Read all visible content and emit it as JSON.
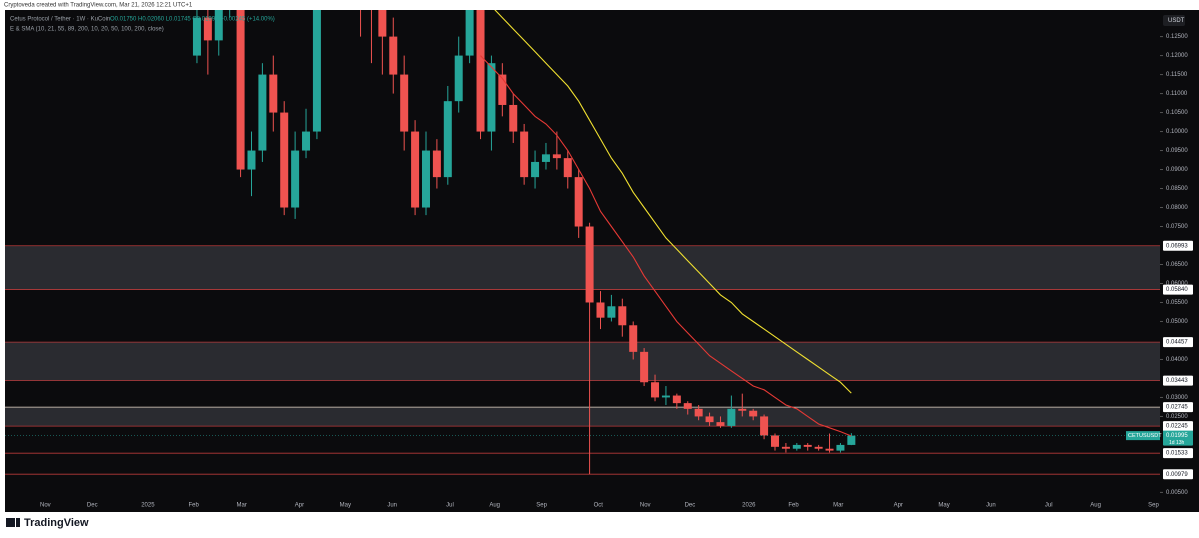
{
  "chart_data": {
    "type": "candlestick",
    "credit": "Cryptoveda created with TradingView.com, Mar 21, 2026 12:21 UTC+1",
    "title": "Cetus Protocol / Tether · 1W · KuCoin",
    "ohlc_legend": "O0.01750 H0.02060 L0.01745 C0.01995 +0.00245 (+14.00%)",
    "indicator_legend": "E & SMA (10, 21, 55, 89, 200, 10, 20, 50, 100, 200, close)",
    "currency": "USDT",
    "symbol": "CETUSUSDT",
    "countdown": "1d 13h",
    "brand": "TradingView",
    "up_color": "#26a69a",
    "down_color": "#ef5350",
    "open": [
      0.12,
      0.13,
      0.124,
      0.135,
      0.14,
      0.09,
      0.095,
      0.115,
      0.105,
      0.08,
      0.095,
      0.1,
      0.14,
      0.15,
      0.145,
      0.155,
      0.148,
      0.14,
      0.125,
      0.115,
      0.1,
      0.08,
      0.095,
      0.088,
      0.108,
      0.12,
      0.14,
      0.1,
      0.115,
      0.107,
      0.1,
      0.088,
      0.092,
      0.094,
      0.093,
      0.088,
      0.075,
      0.055,
      0.051,
      0.054,
      0.049,
      0.042,
      0.034,
      0.03,
      0.0305,
      0.0285,
      0.027,
      0.025,
      0.0235,
      0.0225,
      0.027,
      0.0265,
      0.025,
      0.02,
      0.017,
      0.0165,
      0.0175,
      0.017,
      0.0165,
      0.016,
      0.0175
    ],
    "high": [
      0.137,
      0.134,
      0.14,
      0.15,
      0.145,
      0.1,
      0.118,
      0.12,
      0.108,
      0.1,
      0.106,
      0.15,
      0.16,
      0.158,
      0.165,
      0.16,
      0.152,
      0.145,
      0.13,
      0.12,
      0.103,
      0.1,
      0.098,
      0.112,
      0.125,
      0.15,
      0.145,
      0.12,
      0.118,
      0.11,
      0.102,
      0.095,
      0.097,
      0.1,
      0.095,
      0.09,
      0.076,
      0.058,
      0.057,
      0.056,
      0.05,
      0.043,
      0.036,
      0.033,
      0.031,
      0.029,
      0.028,
      0.026,
      0.025,
      0.0305,
      0.031,
      0.027,
      0.0255,
      0.0205,
      0.018,
      0.018,
      0.018,
      0.0175,
      0.0205,
      0.018,
      0.0206
    ],
    "low": [
      0.118,
      0.115,
      0.12,
      0.13,
      0.088,
      0.083,
      0.092,
      0.1,
      0.078,
      0.077,
      0.093,
      0.098,
      0.135,
      0.14,
      0.14,
      0.125,
      0.118,
      0.115,
      0.11,
      0.095,
      0.078,
      0.078,
      0.085,
      0.086,
      0.105,
      0.118,
      0.098,
      0.095,
      0.104,
      0.097,
      0.086,
      0.085,
      0.09,
      0.09,
      0.085,
      0.072,
      0.0098,
      0.048,
      0.05,
      0.046,
      0.04,
      0.033,
      0.029,
      0.028,
      0.027,
      0.0255,
      0.024,
      0.0225,
      0.022,
      0.022,
      0.025,
      0.024,
      0.019,
      0.016,
      0.0155,
      0.016,
      0.016,
      0.016,
      0.0155,
      0.0155,
      0.01745
    ],
    "close": [
      0.13,
      0.124,
      0.135,
      0.14,
      0.09,
      0.095,
      0.115,
      0.105,
      0.08,
      0.095,
      0.1,
      0.14,
      0.15,
      0.145,
      0.155,
      0.148,
      0.14,
      0.125,
      0.115,
      0.1,
      0.08,
      0.095,
      0.088,
      0.108,
      0.12,
      0.14,
      0.1,
      0.118,
      0.107,
      0.1,
      0.088,
      0.092,
      0.094,
      0.093,
      0.088,
      0.075,
      0.055,
      0.051,
      0.054,
      0.049,
      0.042,
      0.034,
      0.03,
      0.0305,
      0.0285,
      0.027,
      0.025,
      0.0235,
      0.0225,
      0.027,
      0.0265,
      0.025,
      0.02,
      0.017,
      0.0165,
      0.0175,
      0.017,
      0.0165,
      0.016,
      0.0175,
      0.01995
    ],
    "lines": [
      {
        "color": "#e53935",
        "values": [
          null,
          null,
          null,
          null,
          null,
          null,
          null,
          null,
          null,
          null,
          null,
          null,
          null,
          null,
          null,
          null,
          null,
          null,
          null,
          null,
          null,
          null,
          null,
          null,
          null,
          null,
          0.12,
          0.117,
          0.114,
          0.11,
          0.107,
          0.104,
          0.102,
          0.099,
          0.095,
          0.09,
          0.085,
          0.079,
          0.075,
          0.071,
          0.067,
          0.062,
          0.058,
          0.054,
          0.05,
          0.047,
          0.044,
          0.041,
          0.039,
          0.037,
          0.035,
          0.033,
          0.032,
          0.03,
          0.028,
          0.027,
          0.025,
          0.023,
          0.022,
          0.021,
          0.01986
        ]
      },
      {
        "color": "#f0e030",
        "values": [
          null,
          null,
          null,
          null,
          null,
          null,
          null,
          null,
          null,
          null,
          null,
          null,
          null,
          null,
          null,
          null,
          null,
          null,
          null,
          null,
          null,
          null,
          null,
          null,
          null,
          null,
          null,
          0.133,
          0.13,
          0.127,
          0.124,
          0.121,
          0.118,
          0.115,
          0.112,
          0.108,
          0.103,
          0.098,
          0.093,
          0.089,
          0.084,
          0.08,
          0.076,
          0.072,
          0.069,
          0.066,
          0.063,
          0.06,
          0.057,
          0.055,
          0.052,
          0.05,
          0.048,
          0.046,
          0.044,
          0.042,
          0.04,
          0.038,
          0.036,
          0.034,
          0.03113
        ]
      }
    ],
    "levels": [
      {
        "value": 0.06993,
        "label": "0.06993"
      },
      {
        "value": 0.0584,
        "label": "0.05840"
      },
      {
        "value": 0.04457,
        "label": "0.04457"
      },
      {
        "value": 0.03443,
        "label": "0.03443"
      },
      {
        "value": 0.02745,
        "label": "0.02745"
      },
      {
        "value": 0.02245,
        "label": "0.02245"
      },
      {
        "value": 0.01533,
        "label": "0.01533"
      },
      {
        "value": 0.00979,
        "label": "0.00979"
      }
    ],
    "ylim": [
      0.003,
      0.132
    ],
    "yticks": [
      {
        "value": 0.125,
        "label": "0.12500"
      },
      {
        "value": 0.12,
        "label": "0.12000"
      },
      {
        "value": 0.115,
        "label": "0.11500"
      },
      {
        "value": 0.11,
        "label": "0.11000"
      },
      {
        "value": 0.105,
        "label": "0.10500"
      },
      {
        "value": 0.1,
        "label": "0.10000"
      },
      {
        "value": 0.095,
        "label": "0.09500"
      },
      {
        "value": 0.09,
        "label": "0.09000"
      },
      {
        "value": 0.085,
        "label": "0.08500"
      },
      {
        "value": 0.08,
        "label": "0.08000"
      },
      {
        "value": 0.075,
        "label": "0.07500"
      },
      {
        "value": 0.065,
        "label": "0.06500"
      },
      {
        "value": 0.06,
        "label": "0.06000"
      },
      {
        "value": 0.055,
        "label": "0.05500"
      },
      {
        "value": 0.05,
        "label": "0.05000"
      },
      {
        "value": 0.04,
        "label": "0.04000"
      },
      {
        "value": 0.03,
        "label": "0.03000"
      },
      {
        "value": 0.025,
        "label": "0.02500"
      },
      {
        "value": 0.005,
        "label": "0.00500"
      }
    ],
    "xlim": [
      -17.6,
      88.3
    ],
    "xticks": [
      {
        "value": -13.9,
        "label": "Nov"
      },
      {
        "value": -9.6,
        "label": "Dec"
      },
      {
        "value": -4.5,
        "label": "2025"
      },
      {
        "value": -0.3,
        "label": "Feb"
      },
      {
        "value": 4.1,
        "label": "Mar"
      },
      {
        "value": 9.4,
        "label": "Apr"
      },
      {
        "value": 13.6,
        "label": "May"
      },
      {
        "value": 17.9,
        "label": "Jun"
      },
      {
        "value": 23.2,
        "label": "Jul"
      },
      {
        "value": 27.3,
        "label": "Aug"
      },
      {
        "value": 31.6,
        "label": "Sep"
      },
      {
        "value": 36.8,
        "label": "Oct"
      },
      {
        "value": 41.1,
        "label": "Nov"
      },
      {
        "value": 45.2,
        "label": "Dec"
      },
      {
        "value": 50.6,
        "label": "2026"
      },
      {
        "value": 54.7,
        "label": "Feb"
      },
      {
        "value": 58.8,
        "label": "Mar"
      },
      {
        "value": 64.3,
        "label": "Apr"
      },
      {
        "value": 68.5,
        "label": "May"
      },
      {
        "value": 72.8,
        "label": "Jun"
      },
      {
        "value": 78.1,
        "label": "Jul"
      },
      {
        "value": 82.4,
        "label": "Aug"
      },
      {
        "value": 87.7,
        "label": "Sep"
      }
    ]
  }
}
